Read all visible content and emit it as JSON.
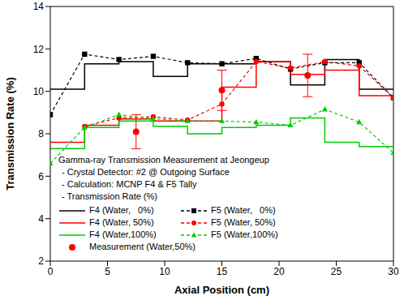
{
  "chart_data": {
    "type": "line",
    "x_label": "Axial Position (cm)",
    "y_label": "Transmission Rate (%)",
    "annotations": [
      "Gamma-ray Transmission Measurement at Jeongeup",
      "- Crystal Detector: #2 @ Outgoing Surface",
      "- Calculation: MCNP F4 & F5 Tally",
      "- Transmission Rate (%)"
    ],
    "xlim": [
      0,
      30
    ],
    "xticks": [
      0,
      5,
      10,
      15,
      20,
      25,
      30
    ],
    "ylim": [
      2,
      14
    ],
    "yticks": [
      2,
      4,
      6,
      8,
      10,
      12,
      14
    ],
    "grid": false,
    "legend": "lower left",
    "series": [
      {
        "name": "F4 (Water,   0%)",
        "type": "step",
        "color": "#000000",
        "line_style": "solid",
        "bins": [
          0,
          3,
          6,
          9,
          12,
          15,
          18,
          21,
          24,
          27,
          30
        ],
        "values": [
          10.1,
          11.3,
          11.4,
          10.7,
          11.3,
          11.3,
          11.4,
          10.3,
          11.5,
          10.1
        ]
      },
      {
        "name": "F4 (Water, 50%)",
        "type": "step",
        "color": "#ff0000",
        "line_style": "solid",
        "bins": [
          0,
          3,
          6,
          9,
          12,
          15,
          18,
          21,
          24,
          27,
          30
        ],
        "values": [
          7.6,
          8.4,
          8.7,
          8.6,
          8.6,
          10.2,
          11.4,
          10.8,
          11.0,
          9.8
        ]
      },
      {
        "name": "F4 (Water,100%)",
        "type": "step",
        "color": "#00cc00",
        "line_style": "solid",
        "bins": [
          0,
          3,
          6,
          9,
          12,
          15,
          18,
          21,
          24,
          27,
          30
        ],
        "values": [
          7.3,
          8.3,
          8.6,
          8.35,
          8.0,
          8.3,
          8.4,
          8.75,
          7.6,
          7.4
        ]
      },
      {
        "name": "Measurement (Water,50%)",
        "type": "scatter",
        "color": "#ff0000",
        "marker": "circle",
        "x": [
          7.5,
          15,
          22.5
        ],
        "values": [
          8.1,
          10.05,
          10.75
        ],
        "errors": [
          0.8,
          0.95,
          1.0
        ]
      },
      {
        "name": "F5 (Water,   0%)",
        "type": "line",
        "color": "#000000",
        "line_style": "dashed",
        "marker": "square",
        "x": [
          0,
          3,
          6,
          9,
          12,
          15,
          18,
          21,
          24,
          27,
          30
        ],
        "values": [
          8.9,
          11.75,
          11.5,
          11.65,
          11.35,
          11.3,
          11.55,
          11.05,
          11.35,
          11.35,
          9.7
        ]
      },
      {
        "name": "F5 (Water, 50%)",
        "type": "line",
        "color": "#ff0000",
        "line_style": "dashed",
        "marker": "circle",
        "x": [
          3,
          6,
          9,
          12,
          15,
          18,
          21,
          24,
          27,
          30
        ],
        "values": [
          8.35,
          8.75,
          8.8,
          8.65,
          9.4,
          11.4,
          11.1,
          11.4,
          11.2,
          9.7
        ]
      },
      {
        "name": "F5 (Water,100%)",
        "type": "line",
        "color": "#00cc00",
        "line_style": "dashed",
        "marker": "triangle",
        "x": [
          0,
          3,
          6,
          9,
          12,
          15,
          18,
          21,
          24,
          27,
          30
        ],
        "values": [
          6.6,
          8.3,
          8.9,
          8.7,
          8.6,
          8.6,
          8.55,
          8.4,
          9.15,
          8.55,
          7.1
        ]
      }
    ]
  }
}
